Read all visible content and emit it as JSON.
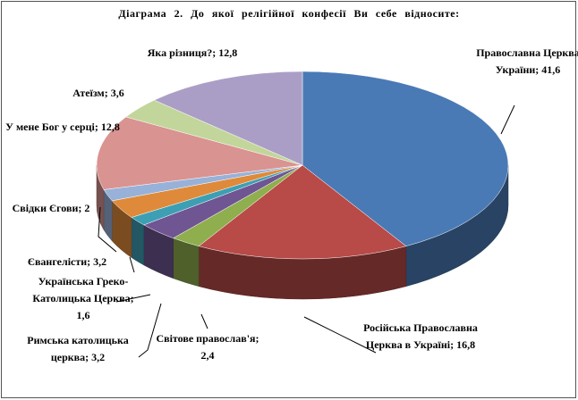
{
  "chart_data": {
    "type": "pie3d",
    "title": "Діаграма 2. До якої релігійної конфесії Ви себе відносите:",
    "values": [
      41.6,
      16.8,
      2.4,
      3.2,
      1.6,
      3.2,
      2,
      12.8,
      3.6,
      12.8
    ],
    "value_labels": [
      "Православна Церква України; 41,6",
      "Російська Православна Церква в Україні; 16,8",
      "Світове православ'я; 2,4",
      "Римська католицька церква; 3,2",
      "Українська Греко-Католицька Церква; 1,6",
      "Євангелісти; 3,2",
      "Свідки Єгови; 2",
      "У мене Бог у серці; 12,8",
      "Атеїзм; 3,6",
      "Яка різниця?; 12,8"
    ],
    "colors": [
      "#4a7ab5",
      "#b84a48",
      "#8fae4e",
      "#6f5592",
      "#3d9fb4",
      "#df8a3a",
      "#98b1d8",
      "#d99391",
      "#c2d69b",
      "#ab9ec6"
    ]
  }
}
